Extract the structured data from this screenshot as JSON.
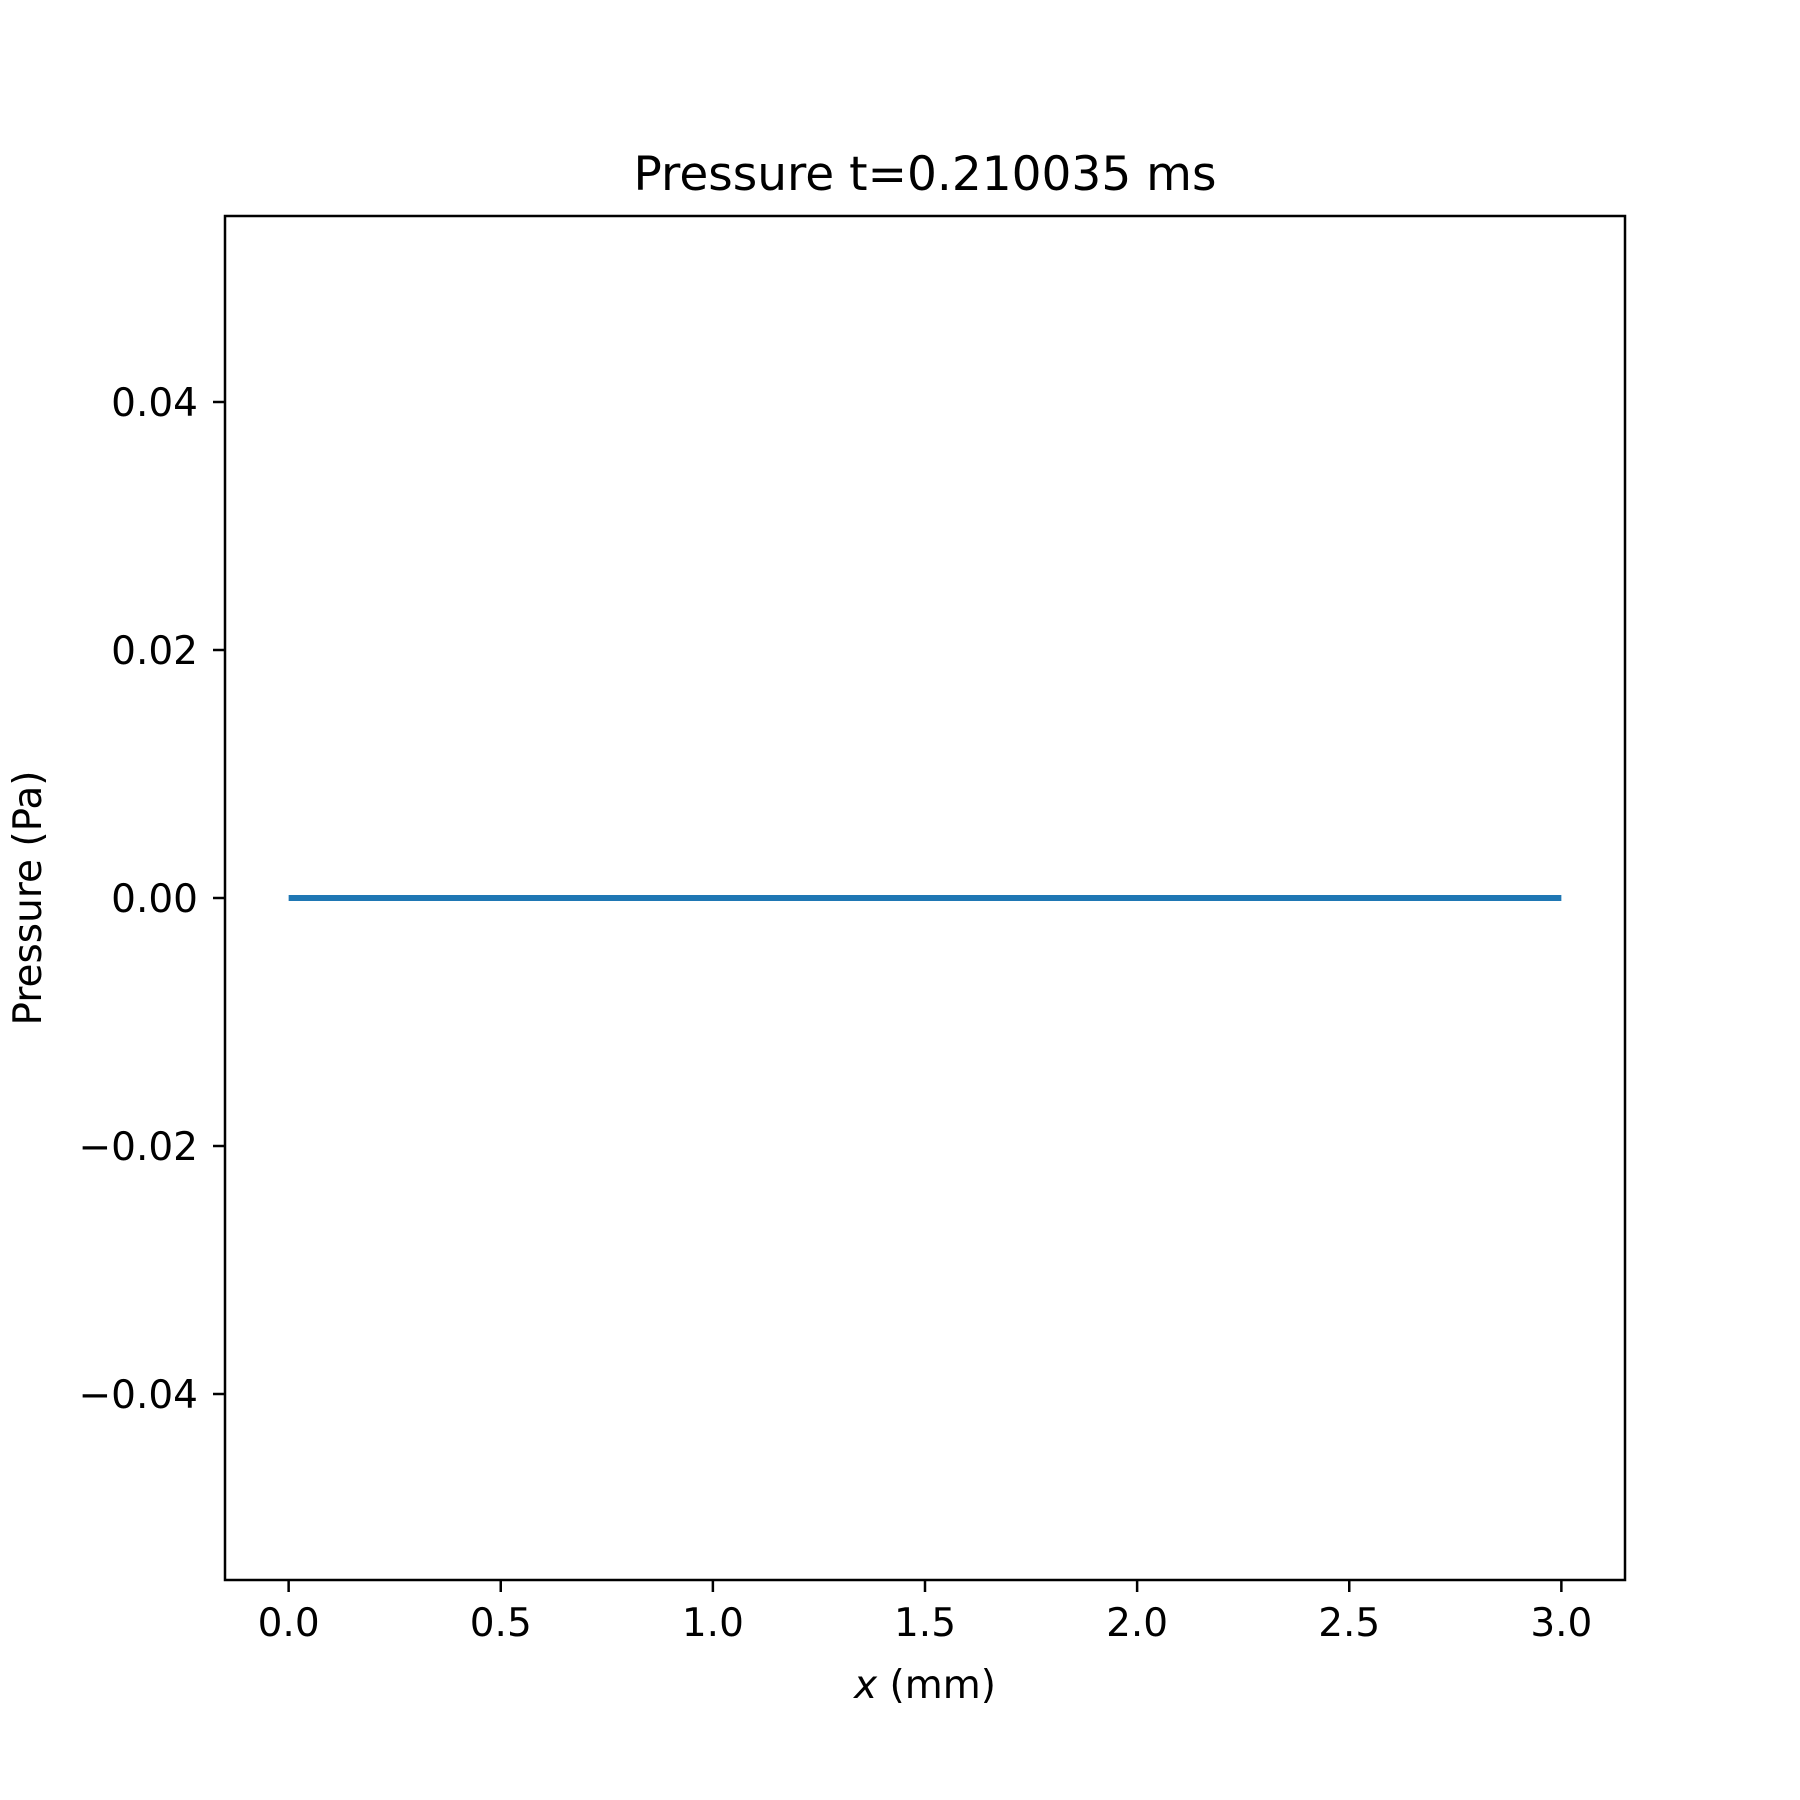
{
  "chart_data": {
    "type": "line",
    "title": "Pressure t=0.210035 ms",
    "xlabel_var": "x",
    "xlabel_unit": " (mm)",
    "ylabel": "Pressure (Pa)",
    "xlim": [
      -0.15,
      3.15
    ],
    "ylim": [
      -0.055,
      0.055
    ],
    "xticks": [
      0.0,
      0.5,
      1.0,
      1.5,
      2.0,
      2.5,
      3.0
    ],
    "xtick_labels": [
      "0.0",
      "0.5",
      "1.0",
      "1.5",
      "2.0",
      "2.5",
      "3.0"
    ],
    "yticks": [
      -0.04,
      -0.02,
      0.0,
      0.02,
      0.04
    ],
    "ytick_labels": [
      "−0.04",
      "−0.02",
      "0.00",
      "0.02",
      "0.04"
    ],
    "grid": false,
    "series": [
      {
        "color": "#1f77b4",
        "x": [
          0.0,
          3.0
        ],
        "y": [
          0.0,
          0.0
        ]
      }
    ]
  }
}
